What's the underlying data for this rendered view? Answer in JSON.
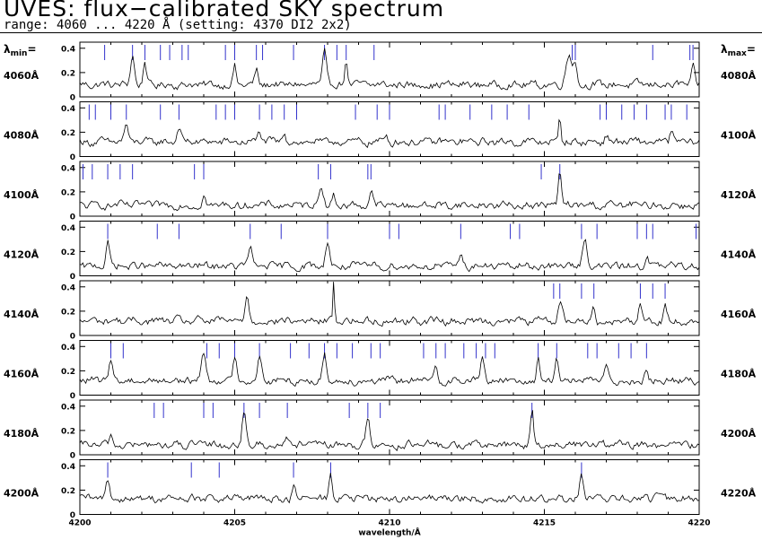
{
  "header": {
    "title": "UVES: flux−calibrated SKY spectrum",
    "subtitle": "range: 4060 ... 4220 Å (setting: 4370 DI2 2x2)"
  },
  "labels": {
    "lambda_min": "λmin=",
    "lambda_max": "λmax="
  },
  "colors": {
    "line_marker": "#3333cc",
    "spectrum": "#000000"
  },
  "chart_data": {
    "type": "line",
    "xlabel": "wavelength/Å",
    "x_ticks": [
      "4200",
      "4205",
      "4210",
      "4215",
      "4220"
    ],
    "y_ticks": [
      "0",
      "0.2",
      "0.4"
    ],
    "ylim": [
      0,
      0.45
    ],
    "panels": [
      {
        "lambda_min": "4060Å",
        "lambda_max": "4080Å",
        "xlim": [
          4060,
          4080
        ],
        "markers": [
          4060.8,
          4061.7,
          4062.1,
          4062.6,
          4062.9,
          4063.3,
          4063.5,
          4064.7,
          4065.0,
          4065.7,
          4065.9,
          4066.9,
          4067.9,
          4068.3,
          4068.6,
          4069.5,
          4075.9,
          4076.0,
          4078.5,
          4079.7,
          4079.8
        ],
        "peaks": [
          [
            4061.7,
            0.28,
            0.06
          ],
          [
            4062.1,
            0.22,
            0.05
          ],
          [
            4065.0,
            0.18,
            0.05
          ],
          [
            4065.7,
            0.15,
            0.05
          ],
          [
            4067.9,
            0.3,
            0.06
          ],
          [
            4068.6,
            0.22,
            0.05
          ],
          [
            4075.8,
            0.28,
            0.1
          ],
          [
            4076.0,
            0.2,
            0.05
          ],
          [
            4079.8,
            0.18,
            0.05
          ]
        ],
        "baseline": 0.1
      },
      {
        "lambda_min": "4080Å",
        "lambda_max": "4100Å",
        "xlim": [
          4080,
          4100
        ],
        "markers": [
          4080.3,
          4080.5,
          4081.0,
          4081.5,
          4082.6,
          4083.2,
          4084.4,
          4084.7,
          4085.0,
          4085.8,
          4086.2,
          4086.6,
          4087.0,
          4088.9,
          4089.6,
          4090.0,
          4091.6,
          4091.8,
          4092.6,
          4093.3,
          4093.8,
          4094.5,
          4096.8,
          4097.0,
          4097.5,
          4097.9,
          4098.3,
          4098.9,
          4099.1,
          4099.6
        ],
        "peaks": [
          [
            4081.5,
            0.18,
            0.06
          ],
          [
            4083.2,
            0.17,
            0.06
          ],
          [
            4085.8,
            0.14,
            0.05
          ],
          [
            4086.6,
            0.12,
            0.05
          ],
          [
            4089.9,
            0.1,
            0.05
          ],
          [
            4095.5,
            0.23,
            0.04
          ],
          [
            4097.0,
            0.1,
            0.05
          ],
          [
            4099.1,
            0.12,
            0.05
          ]
        ],
        "baseline": 0.12
      },
      {
        "lambda_min": "4100Å",
        "lambda_max": "4120Å",
        "xlim": [
          4100,
          4120
        ],
        "markers": [
          4100.1,
          4100.4,
          4100.9,
          4101.3,
          4101.7,
          4103.7,
          4104.0,
          4107.7,
          4108.1,
          4109.3,
          4109.4,
          4114.9,
          4115.5
        ],
        "peaks": [
          [
            4107.8,
            0.2,
            0.07
          ],
          [
            4108.2,
            0.1,
            0.05
          ],
          [
            4109.4,
            0.15,
            0.05
          ],
          [
            4115.5,
            0.3,
            0.05
          ],
          [
            4104.0,
            0.1,
            0.05
          ]
        ],
        "baseline": 0.09
      },
      {
        "lambda_min": "4120Å",
        "lambda_max": "4140Å",
        "xlim": [
          4120,
          4140
        ],
        "markers": [
          4120.9,
          4122.5,
          4123.2,
          4125.5,
          4126.5,
          4128.0,
          4130.0,
          4130.3,
          4132.3,
          4133.9,
          4134.2,
          4136.2,
          4136.7,
          4138.0,
          4138.3,
          4138.5,
          4139.9
        ],
        "peaks": [
          [
            4120.9,
            0.22,
            0.06
          ],
          [
            4125.5,
            0.18,
            0.06
          ],
          [
            4128.0,
            0.24,
            0.06
          ],
          [
            4132.3,
            0.14,
            0.05
          ],
          [
            4136.3,
            0.26,
            0.07
          ],
          [
            4138.3,
            0.12,
            0.05
          ]
        ],
        "baseline": 0.08
      },
      {
        "lambda_min": "4140Å",
        "lambda_max": "4160Å",
        "xlim": [
          4140,
          4160
        ],
        "markers": [
          4155.3,
          4155.5,
          4156.2,
          4156.6,
          4158.1,
          4158.5,
          4158.9
        ],
        "peaks": [
          [
            4145.4,
            0.25,
            0.06
          ],
          [
            4148.2,
            0.42,
            0.025
          ],
          [
            4155.5,
            0.18,
            0.07
          ],
          [
            4156.6,
            0.14,
            0.05
          ],
          [
            4158.1,
            0.18,
            0.06
          ],
          [
            4158.9,
            0.15,
            0.05
          ]
        ],
        "baseline": 0.12
      },
      {
        "lambda_min": "4160Å",
        "lambda_max": "4180Å",
        "xlim": [
          4160,
          4180
        ],
        "markers": [
          4161.0,
          4161.4,
          4164.1,
          4164.5,
          4165.0,
          4165.8,
          4166.8,
          4167.4,
          4167.9,
          4168.3,
          4168.8,
          4169.4,
          4169.7,
          4171.1,
          4171.5,
          4171.8,
          4172.4,
          4172.8,
          4173.1,
          4173.4,
          4174.8,
          4175.4,
          4176.4,
          4176.7,
          4177.4,
          4177.8,
          4178.3
        ],
        "peaks": [
          [
            4161.0,
            0.22,
            0.06
          ],
          [
            4164.0,
            0.28,
            0.07
          ],
          [
            4165.0,
            0.22,
            0.06
          ],
          [
            4165.8,
            0.26,
            0.06
          ],
          [
            4167.9,
            0.24,
            0.06
          ],
          [
            4171.5,
            0.14,
            0.05
          ],
          [
            4173.0,
            0.22,
            0.06
          ],
          [
            4174.8,
            0.2,
            0.05
          ],
          [
            4175.4,
            0.24,
            0.06
          ],
          [
            4177.0,
            0.16,
            0.05
          ],
          [
            4178.3,
            0.14,
            0.05
          ]
        ],
        "baseline": 0.12
      },
      {
        "lambda_min": "4180Å",
        "lambda_max": "4200Å",
        "xlim": [
          4180,
          4200
        ],
        "markers": [
          4182.4,
          4182.7,
          4184.0,
          4184.3,
          4185.3,
          4185.8,
          4186.7,
          4188.7,
          4189.3,
          4189.7,
          4194.6
        ],
        "peaks": [
          [
            4185.3,
            0.3,
            0.06
          ],
          [
            4189.3,
            0.26,
            0.06
          ],
          [
            4194.6,
            0.32,
            0.05
          ],
          [
            4181.0,
            0.1,
            0.05
          ],
          [
            4186.7,
            0.1,
            0.05
          ]
        ],
        "baseline": 0.08
      },
      {
        "lambda_min": "4200Å",
        "lambda_max": "4220Å",
        "xlim": [
          4200,
          4220
        ],
        "markers": [
          4200.9,
          4203.6,
          4204.5,
          4206.9,
          4208.1,
          4216.2
        ],
        "peaks": [
          [
            4200.9,
            0.2,
            0.06
          ],
          [
            4206.9,
            0.14,
            0.05
          ],
          [
            4208.1,
            0.26,
            0.05
          ],
          [
            4216.2,
            0.22,
            0.06
          ],
          [
            4218.6,
            0.1,
            0.05
          ],
          [
            4211.8,
            0.07,
            0.05
          ]
        ],
        "baseline": 0.13
      }
    ]
  }
}
